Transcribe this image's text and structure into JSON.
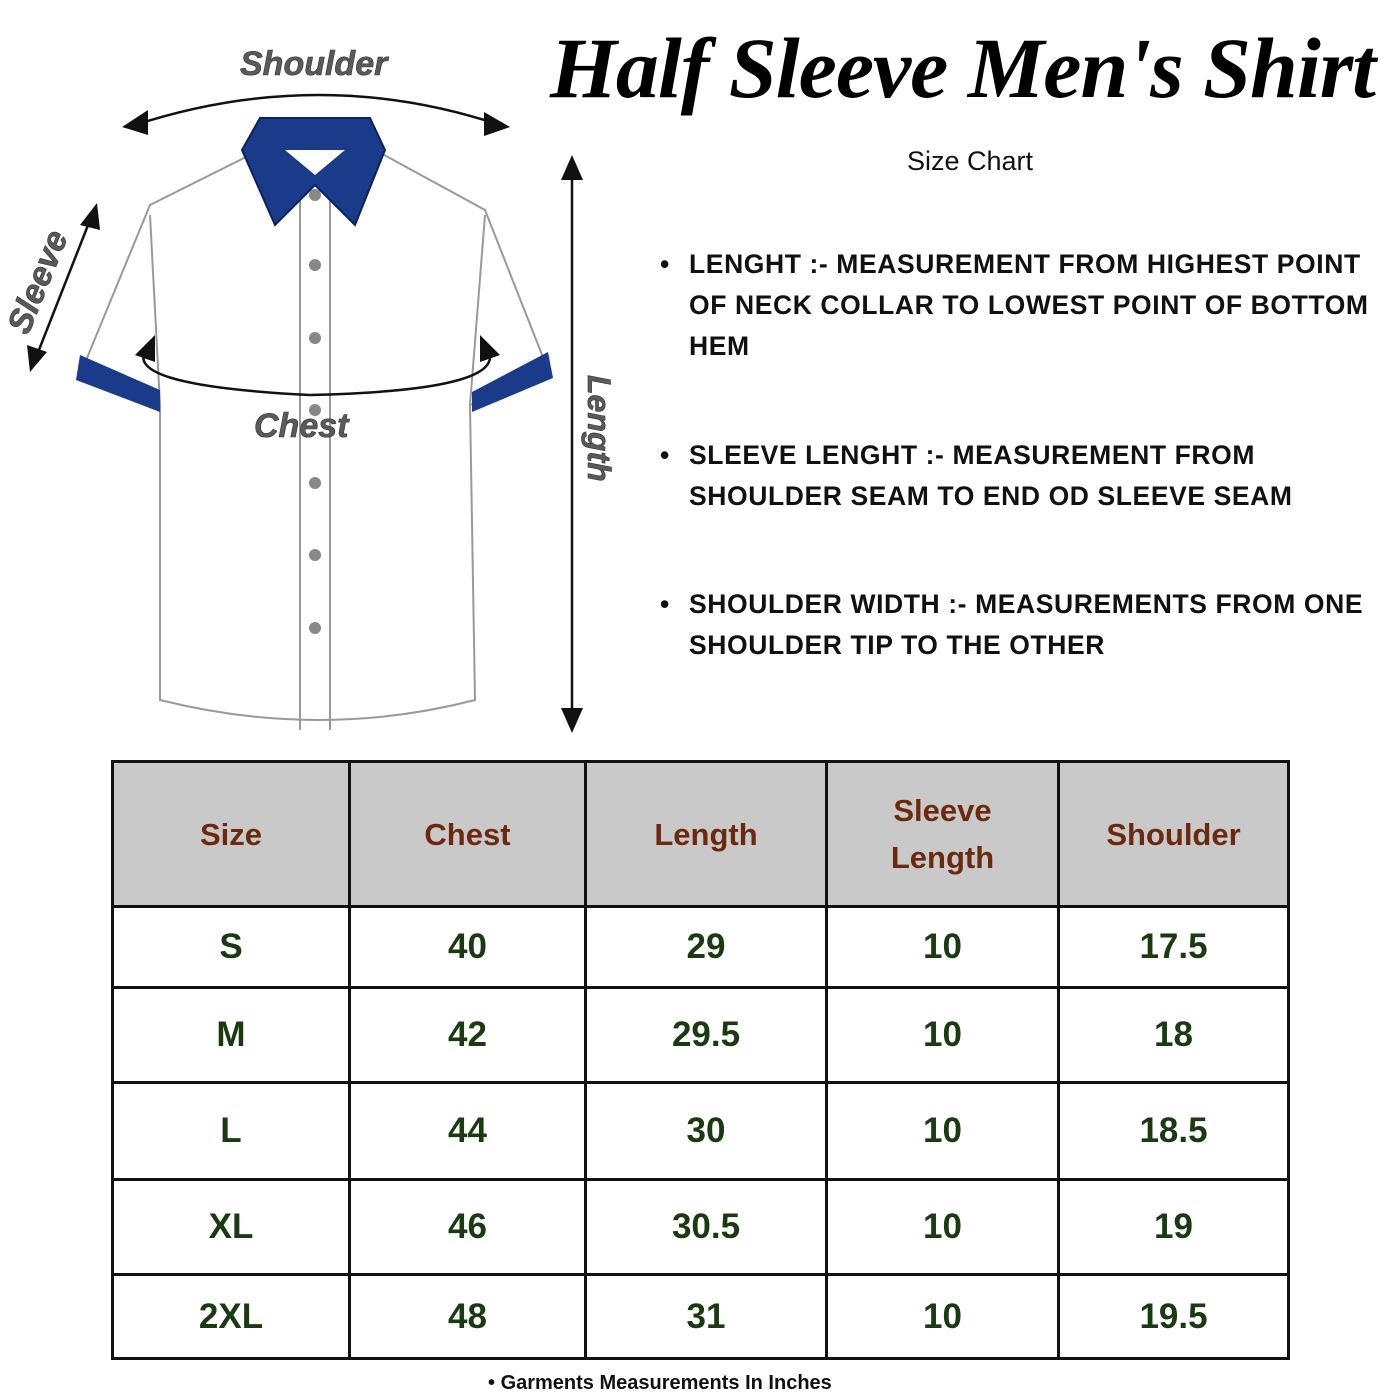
{
  "header": {
    "title": "Half Sleeve Men's Shirt",
    "subtitle": "Size Chart"
  },
  "diagram": {
    "labels": {
      "shoulder": "Shoulder",
      "sleeve": "Sleeve",
      "chest": "Chest",
      "length": "Length"
    },
    "colors": {
      "collar": "#1a3a8a",
      "outline": "#999999",
      "arrows": "#111111"
    }
  },
  "definitions": [
    {
      "text": "LENGHT :- MEASUREMENT FROM HIGHEST POINT OF NECK COLLAR TO LOWEST POINT OF BOTTOM HEM"
    },
    {
      "text": " SLEEVE LENGHT :- MEASUREMENT FROM SHOULDER SEAM TO END OD SLEEVE SEAM"
    },
    {
      "text": "SHOULDER WIDTH :- MEASUREMENTS FROM ONE SHOULDER TIP TO THE OTHER"
    }
  ],
  "chart_data": {
    "type": "table",
    "columns": [
      "Size",
      "Chest",
      "Length",
      "Sleeve Length",
      "Shoulder"
    ],
    "rows": [
      [
        "S",
        "40",
        "29",
        "10",
        "17.5"
      ],
      [
        "M",
        "42",
        "29.5",
        "10",
        "18"
      ],
      [
        "L",
        "44",
        "30",
        "10",
        "18.5"
      ],
      [
        "XL",
        "46",
        "30.5",
        "10",
        "19"
      ],
      [
        "2XL",
        "48",
        "31",
        "10",
        "19.5"
      ]
    ],
    "colors": {
      "header_bg": "#c9c9c9",
      "header_text": "#6b2a0f",
      "cell_text": "#1a3a12"
    }
  },
  "footnote": "Garments Measurements In Inches"
}
